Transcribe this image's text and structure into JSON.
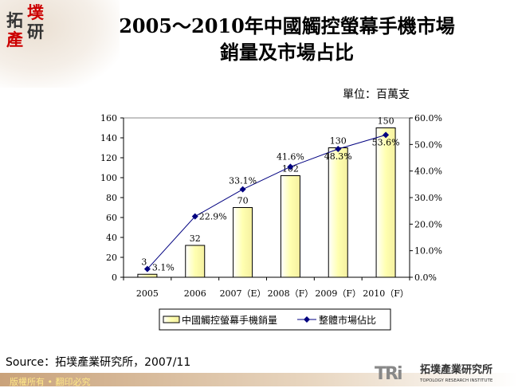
{
  "logo": {
    "chars": [
      "拓",
      "墣",
      "產",
      "研"
    ]
  },
  "title": {
    "line1": "2005～2010年中國觸控螢幕手機市場",
    "line2": "銷量及市場占比"
  },
  "unit": "單位：百萬支",
  "source": "Source：拓墣產業研究所，2007/11",
  "footer": {
    "copyright": "版權所有 • 翻印必究",
    "brand_mark": "TRi",
    "brand_cn": "拓墣產業研究所",
    "brand_en": "TOPOLOGY RESEARCH INSTITUTE"
  },
  "chart_data": {
    "type": "bar+line",
    "categories": [
      "2005",
      "2006",
      "2007（E）",
      "2008（F）",
      "2009（F）",
      "2010（F）"
    ],
    "series": [
      {
        "name": "中國觸控螢幕手機銷量",
        "type": "bar",
        "axis": "left",
        "values": [
          3,
          32,
          70,
          102,
          130,
          150
        ],
        "labels": [
          "3",
          "32",
          "70",
          "102",
          "130",
          "150"
        ],
        "color": "#ffffc0"
      },
      {
        "name": "整體市場佔比",
        "type": "line",
        "axis": "right",
        "values": [
          3.1,
          22.9,
          33.1,
          41.6,
          48.3,
          53.6
        ],
        "labels": [
          "3.1%",
          "22.9%",
          "33.1%",
          "41.6%",
          "48.3%",
          "53.6%"
        ],
        "color": "#000080"
      }
    ],
    "left_axis": {
      "ylim": [
        0,
        160
      ],
      "ticks": [
        "0",
        "20",
        "40",
        "60",
        "80",
        "100",
        "120",
        "140",
        "160"
      ]
    },
    "right_axis": {
      "ylim": [
        0,
        60
      ],
      "ticks": [
        "0.0%",
        "10.0%",
        "20.0%",
        "30.0%",
        "40.0%",
        "50.0%",
        "60.0%"
      ]
    },
    "legend": "bottom",
    "grid": false
  }
}
